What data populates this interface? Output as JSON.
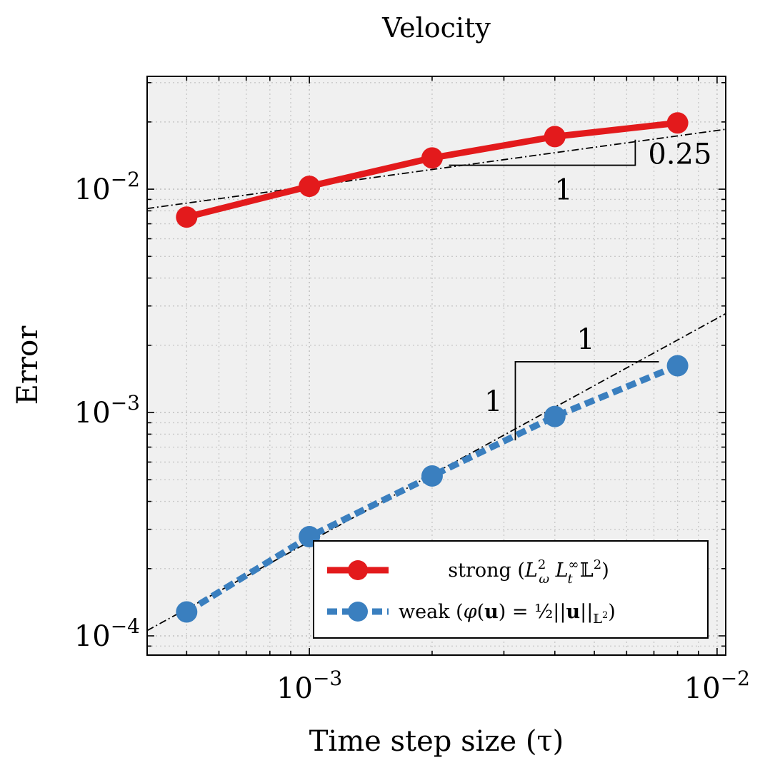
{
  "chart_data": {
    "type": "line",
    "title": "Velocity",
    "xlabel": "Time step size (τ)",
    "ylabel": "Error",
    "x_scale": "log",
    "y_scale": "log",
    "xlim": [
      0.0004,
      0.0105
    ],
    "ylim": [
      8.2e-05,
      0.032
    ],
    "grid": true,
    "legend_position": "bottom-right",
    "x_ticks": [
      {
        "value": 0.001,
        "base": "10",
        "exp": "−3"
      },
      {
        "value": 0.01,
        "base": "10",
        "exp": "−2"
      }
    ],
    "y_ticks": [
      {
        "value": 0.0001,
        "base": "10",
        "exp": "−4"
      },
      {
        "value": 0.001,
        "base": "10",
        "exp": "−3"
      },
      {
        "value": 0.01,
        "base": "10",
        "exp": "−2"
      }
    ],
    "series": [
      {
        "name": "strong (L²ω L∞t 𝕃²)",
        "color": "#e31a1c",
        "style": "solid",
        "marker": "circle",
        "x": [
          0.0005,
          0.001,
          0.002,
          0.004,
          0.008
        ],
        "y": [
          0.0075,
          0.0103,
          0.0138,
          0.0172,
          0.0198
        ]
      },
      {
        "name": "weak (φ(u) = ½||u||𝕃²)",
        "color": "#3a7fbf",
        "style": "dashed",
        "marker": "circle",
        "x": [
          0.0005,
          0.001,
          0.002,
          0.004,
          0.008
        ],
        "y": [
          0.000128,
          0.000278,
          0.00052,
          0.00096,
          0.00162
        ]
      }
    ],
    "reference_lines": [
      {
        "slope": 0.25,
        "anchor_x": 0.001,
        "anchor_y": 0.0103
      },
      {
        "slope": 1,
        "anchor_x": 0.0005,
        "anchor_y": 0.000132
      }
    ],
    "slope_triangles": [
      {
        "x0": 0.0022,
        "x1": 0.0063,
        "slope": 0.25,
        "y0": 0.0128,
        "run_label": "1",
        "rise_label": "0.25"
      },
      {
        "x0": 0.0032,
        "x1": 0.0072,
        "slope": 1,
        "y0": 0.00075,
        "run_label": "1",
        "rise_label": "1"
      }
    ]
  }
}
